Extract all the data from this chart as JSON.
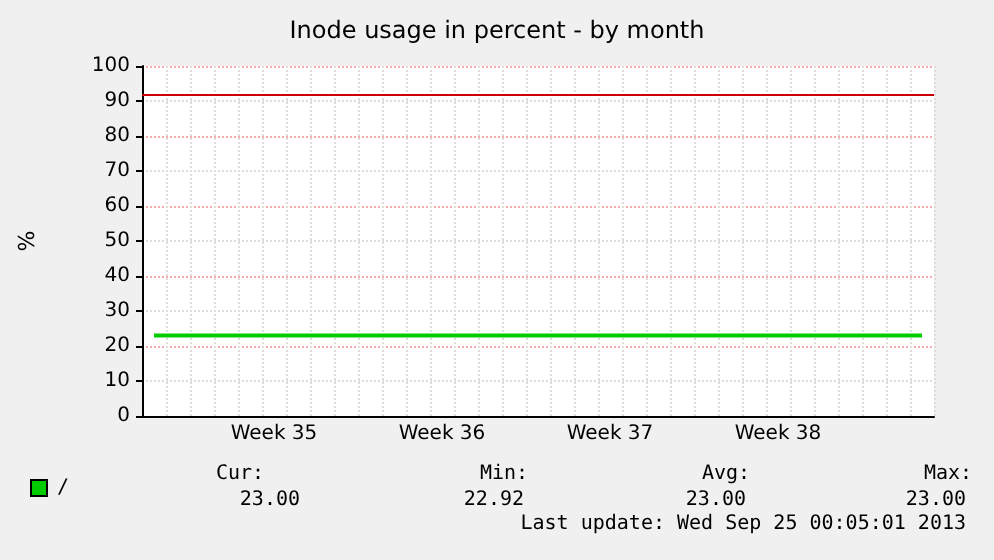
{
  "chart_data": {
    "type": "line",
    "title": "Inode usage in percent - by month",
    "ylabel": "%",
    "categories": [
      null,
      null,
      null,
      null,
      null,
      "Week 35",
      null,
      null,
      null,
      null,
      null,
      null,
      "Week 36",
      null,
      null,
      null,
      null,
      null,
      null,
      "Week 37",
      null,
      null,
      null,
      null,
      null,
      null,
      "Week 38",
      null,
      null,
      null,
      null,
      null,
      null
    ],
    "series": [
      {
        "name": "/",
        "color": "#00cc00",
        "values": [
          23,
          23,
          23,
          23,
          23,
          23,
          23,
          23,
          23,
          23,
          23,
          23,
          23,
          23,
          23,
          23,
          23,
          23,
          23,
          23,
          23,
          23,
          23,
          23,
          23,
          23,
          23,
          23,
          23,
          23,
          23,
          23,
          23
        ]
      }
    ],
    "ylim": [
      0,
      100
    ],
    "yticks": [
      0,
      10,
      20,
      30,
      40,
      50,
      60,
      70,
      80,
      90,
      100
    ],
    "ref_lines": [
      {
        "axis": "y",
        "value": 92,
        "color": "#cc0000",
        "line_style": "solid"
      }
    ],
    "grid": true,
    "legend": "bottom left",
    "marker": "none",
    "line_style": "solid",
    "annotations": [
      "Cur:",
      "Min:",
      "Avg:",
      "Max:",
      "23.00",
      "22.92",
      "23.00",
      "23.00",
      "Last update: Wed Sep 25 00:05:01 2013"
    ]
  }
}
